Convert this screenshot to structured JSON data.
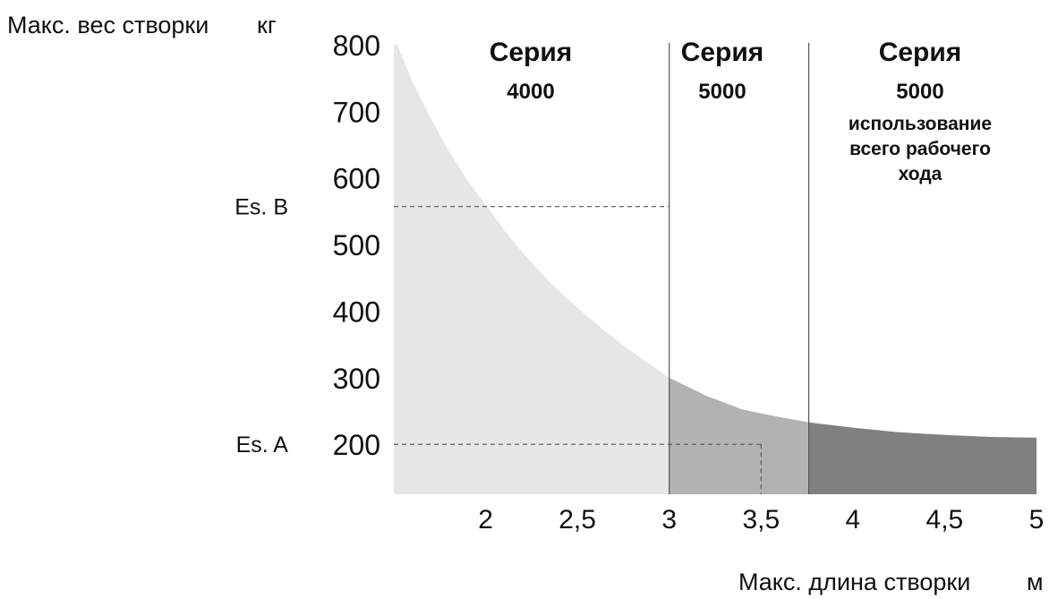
{
  "chart_data": {
    "type": "area",
    "ylabel": "Макс. вес створки",
    "yunit": "кг",
    "xlabel": "Макс. длина створки",
    "xunit": "м",
    "xlim": [
      1.5,
      5
    ],
    "ylim": [
      125,
      800
    ],
    "xticks": [
      {
        "value": 2,
        "label": "2"
      },
      {
        "value": 2.5,
        "label": "2,5"
      },
      {
        "value": 3,
        "label": "3"
      },
      {
        "value": 3.5,
        "label": "3,5"
      },
      {
        "value": 4,
        "label": "4"
      },
      {
        "value": 4.5,
        "label": "4,5"
      },
      {
        "value": 5,
        "label": "5"
      }
    ],
    "yticks": [
      {
        "value": 200,
        "label": "200"
      },
      {
        "value": 300,
        "label": "300"
      },
      {
        "value": 400,
        "label": "400"
      },
      {
        "value": 500,
        "label": "500"
      },
      {
        "value": 600,
        "label": "600"
      },
      {
        "value": 700,
        "label": "700"
      },
      {
        "value": 800,
        "label": "800"
      }
    ],
    "curve": {
      "x": [
        1.52,
        1.6,
        1.7,
        1.8,
        1.9,
        2.0,
        2.1,
        2.2,
        2.35,
        2.5,
        2.65,
        2.8,
        3.0,
        3.2,
        3.4,
        3.6,
        3.76,
        4.0,
        4.25,
        4.5,
        4.75,
        5.0
      ],
      "y": [
        800,
        745,
        690,
        640,
        597,
        560,
        522,
        488,
        443,
        405,
        370,
        338,
        300,
        273,
        252,
        241,
        233,
        225,
        218,
        214,
        211,
        210
      ]
    },
    "regions": [
      {
        "title": "Серия",
        "number": "4000",
        "note": [],
        "x_from": 1.5,
        "x_to": 3.0,
        "color": "#e6e6e6"
      },
      {
        "title": "Серия",
        "number": "5000",
        "note": [],
        "x_from": 3.0,
        "x_to": 3.76,
        "color": "#b2b2b2"
      },
      {
        "title": "Серия",
        "number": "5000",
        "note": [
          "использование",
          "всего рабочего",
          "хода"
        ],
        "x_from": 3.76,
        "x_to": 5.0,
        "color": "#808080"
      }
    ],
    "reference_lines": [
      {
        "label": "Es. B",
        "y": 557,
        "x_to": 3.0
      },
      {
        "label": "Es. A",
        "y": 200,
        "x_to": 3.5
      }
    ]
  }
}
